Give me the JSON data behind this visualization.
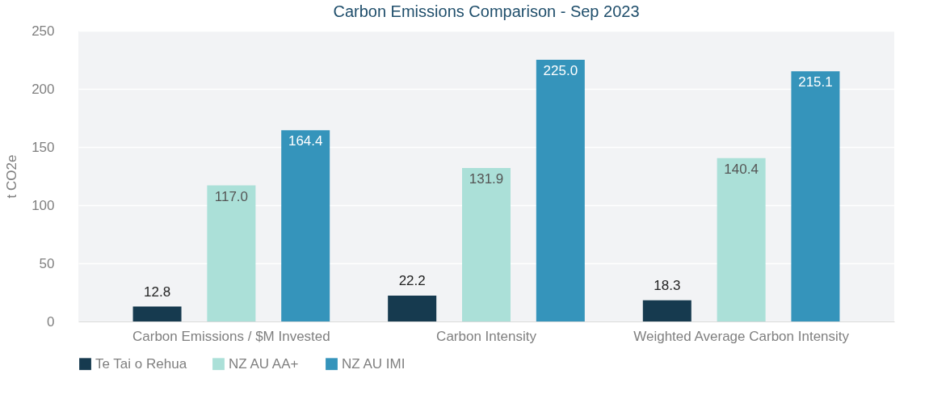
{
  "chart_data": {
    "type": "bar",
    "title": "Carbon Emissions Comparison - Sep 2023",
    "ylabel": "t CO2e",
    "categories": [
      "Carbon Emissions / $M Invested",
      "Carbon Intensity",
      "Weighted Average Carbon Intensity"
    ],
    "series": [
      {
        "name": "Te Tai o Rehua",
        "color": "#163a4f",
        "values": [
          12.8,
          22.2,
          18.3
        ]
      },
      {
        "name": "NZ AU AA+",
        "color": "#abe0d8",
        "values": [
          117.0,
          131.9,
          140.4
        ]
      },
      {
        "name": "NZ AU IMI",
        "color": "#3594bb",
        "values": [
          164.4,
          225.0,
          215.1
        ]
      }
    ],
    "value_labels": [
      [
        "12.8",
        "22.2",
        "18.3"
      ],
      [
        "117.0",
        "131.9",
        "140.4"
      ],
      [
        "164.4",
        "225.0",
        "215.1"
      ]
    ],
    "ylim": [
      0,
      250
    ],
    "yticks": [
      0,
      50,
      100,
      150,
      200,
      250
    ],
    "grid": "y",
    "legend": "bottom"
  }
}
